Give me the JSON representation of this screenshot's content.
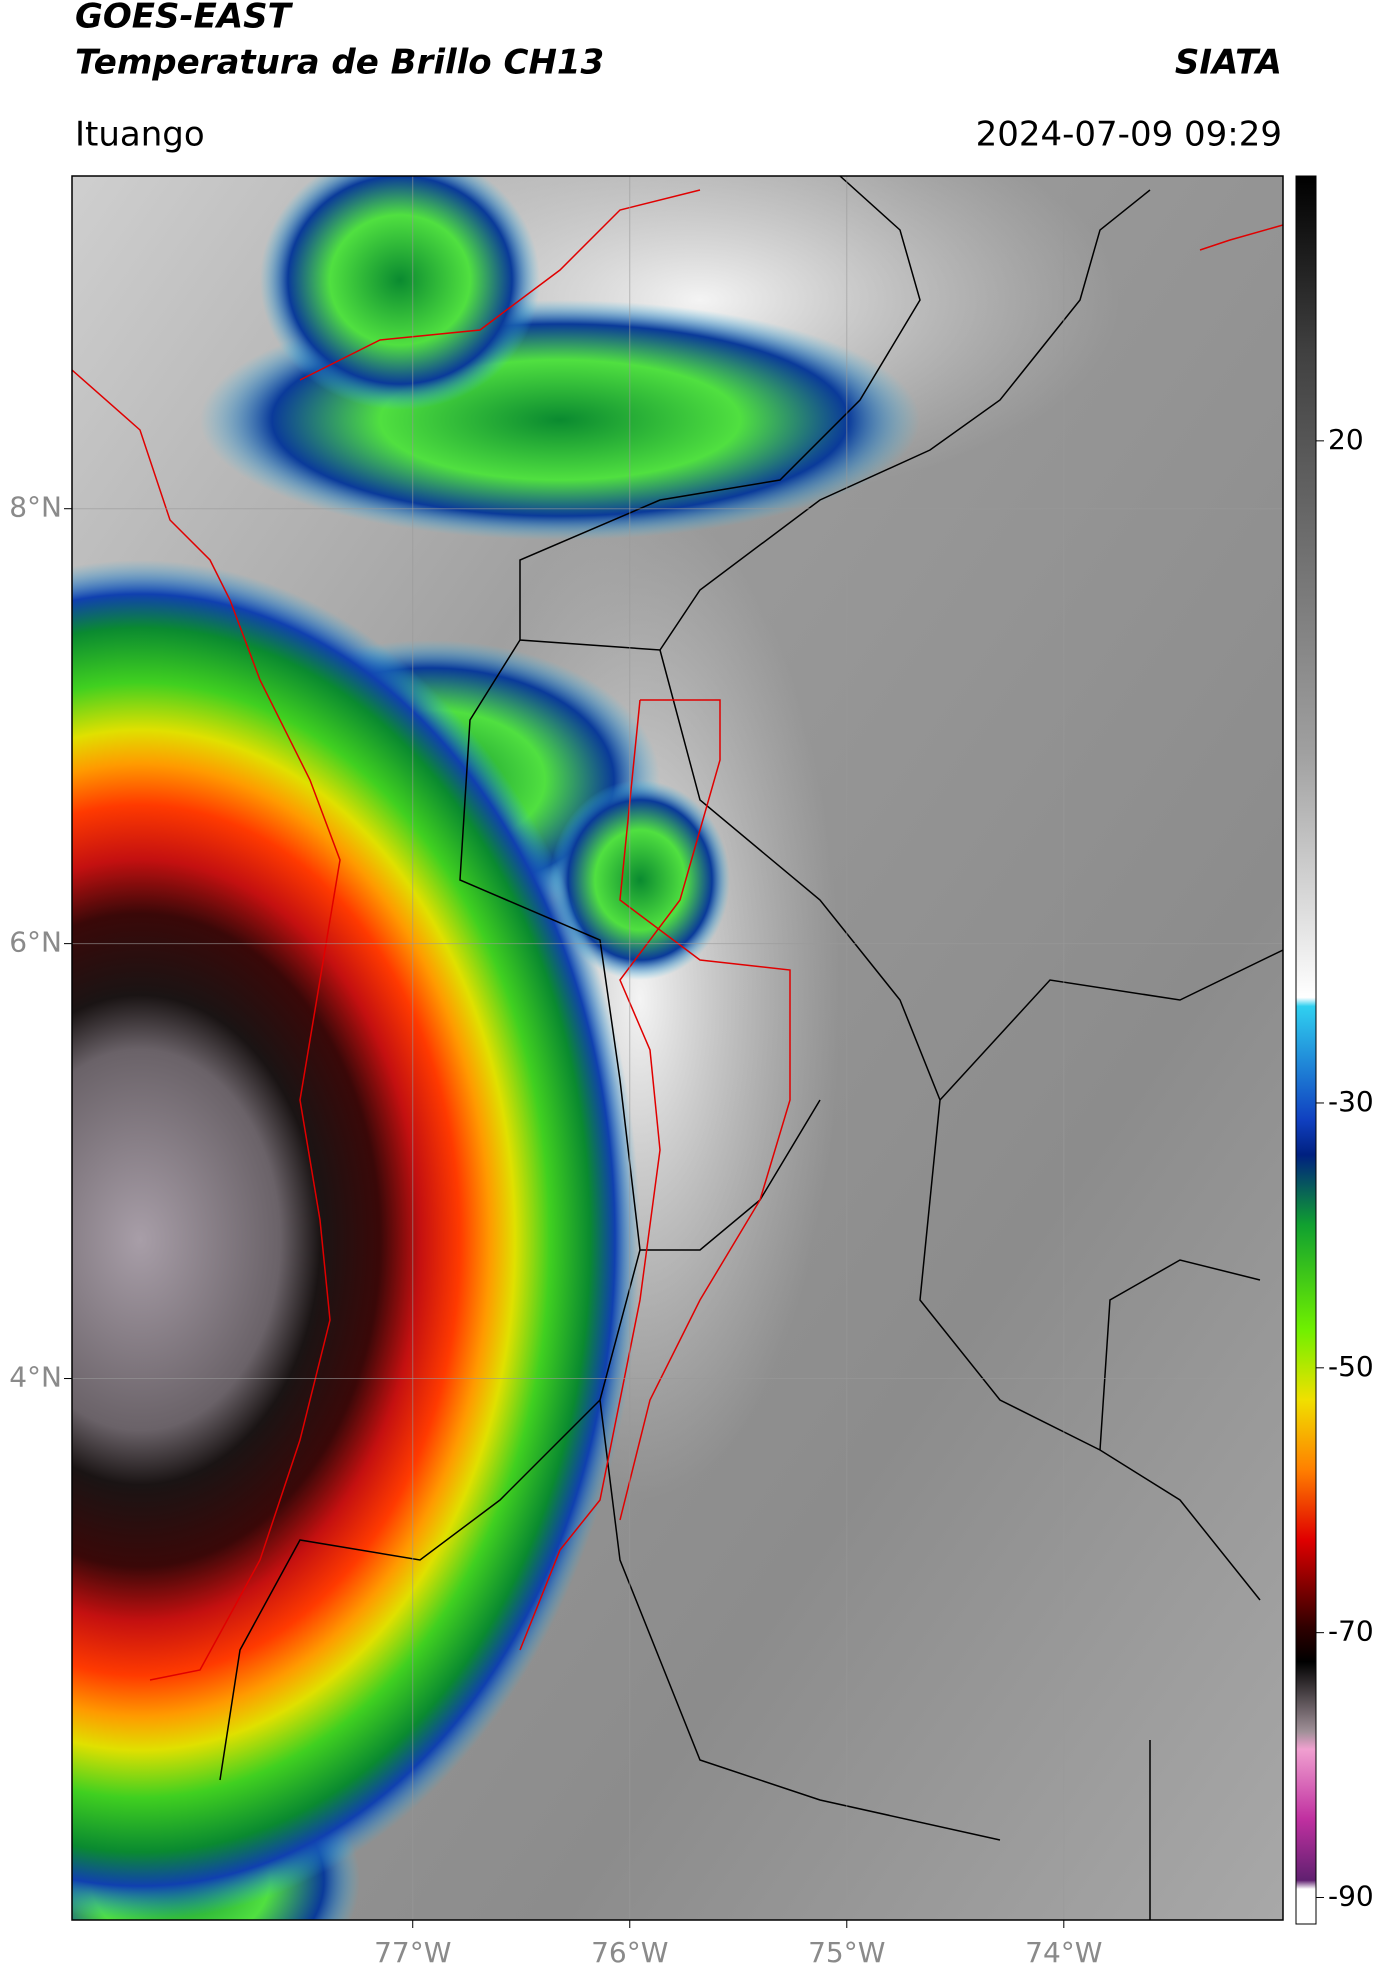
{
  "header": {
    "title": "GOES-EAST",
    "subtitle": "Temperatura de Brillo CH13",
    "source": "SIATA",
    "location": "Ituango",
    "datetime": "2024-07-09 09:29"
  },
  "map": {
    "xlim": [
      -78.57,
      -72.99
    ],
    "ylim": [
      1.51,
      9.53
    ],
    "lat_ticks": [
      {
        "value": 8,
        "label": "8°N"
      },
      {
        "value": 6,
        "label": "6°N"
      },
      {
        "value": 4,
        "label": "4°N"
      }
    ],
    "lon_ticks": [
      {
        "value": -77,
        "label": "77°W"
      },
      {
        "value": -76,
        "label": "76°W"
      },
      {
        "value": -75,
        "label": "75°W"
      },
      {
        "value": -74,
        "label": "74°W"
      }
    ]
  },
  "colorbar": {
    "lim": [
      -92,
      40
    ],
    "ticks": [
      20,
      -30,
      -50,
      -70,
      -90
    ]
  }
}
